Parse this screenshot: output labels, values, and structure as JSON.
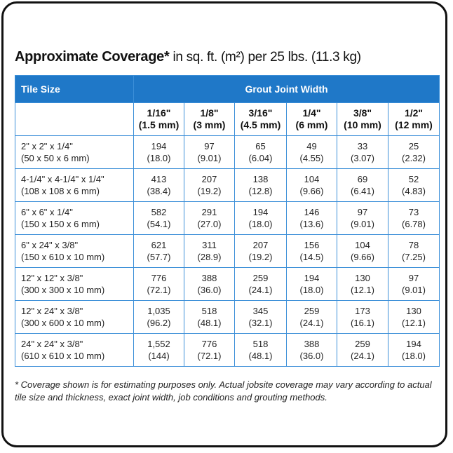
{
  "title": {
    "bold": "Approximate Coverage*",
    "rest": "in sq. ft. (m²) per 25 lbs. (11.3 kg)"
  },
  "table": {
    "header": {
      "tile_size": "Tile Size",
      "grout": "Grout Joint Width"
    },
    "columns": [
      [
        "1/16\"",
        "(1.5 mm)"
      ],
      [
        "1/8\"",
        "(3 mm)"
      ],
      [
        "3/16\"",
        "(4.5 mm)"
      ],
      [
        "1/4\"",
        "(6 mm)"
      ],
      [
        "3/8\"",
        "(10 mm)"
      ],
      [
        "1/2\"",
        "(12 mm)"
      ]
    ],
    "rows": [
      {
        "size": [
          "2\" x 2\" x 1/4\"",
          "(50 x 50 x 6 mm)"
        ],
        "cells": [
          [
            "194",
            "(18.0)"
          ],
          [
            "97",
            "(9.01)"
          ],
          [
            "65",
            "(6.04)"
          ],
          [
            "49",
            "(4.55)"
          ],
          [
            "33",
            "(3.07)"
          ],
          [
            "25",
            "(2.32)"
          ]
        ]
      },
      {
        "size": [
          "4-1/4\" x 4-1/4\" x 1/4\"",
          "(108 x 108 x 6 mm)"
        ],
        "cells": [
          [
            "413",
            "(38.4)"
          ],
          [
            "207",
            "(19.2)"
          ],
          [
            "138",
            "(12.8)"
          ],
          [
            "104",
            "(9.66)"
          ],
          [
            "69",
            "(6.41)"
          ],
          [
            "52",
            "(4.83)"
          ]
        ]
      },
      {
        "size": [
          "6\" x 6\" x 1/4\"",
          "(150 x 150 x 6 mm)"
        ],
        "cells": [
          [
            "582",
            "(54.1)"
          ],
          [
            "291",
            "(27.0)"
          ],
          [
            "194",
            "(18.0)"
          ],
          [
            "146",
            "(13.6)"
          ],
          [
            "97",
            "(9.01)"
          ],
          [
            "73",
            "(6.78)"
          ]
        ]
      },
      {
        "size": [
          "6\" x 24\" x 3/8\"",
          "(150 x 610 x 10 mm)"
        ],
        "cells": [
          [
            "621",
            "(57.7)"
          ],
          [
            "311",
            "(28.9)"
          ],
          [
            "207",
            "(19.2)"
          ],
          [
            "156",
            "(14.5)"
          ],
          [
            "104",
            "(9.66)"
          ],
          [
            "78",
            "(7.25)"
          ]
        ]
      },
      {
        "size": [
          "12\" x 12\" x 3/8\"",
          "(300 x 300 x 10 mm)"
        ],
        "cells": [
          [
            "776",
            "(72.1)"
          ],
          [
            "388",
            "(36.0)"
          ],
          [
            "259",
            "(24.1)"
          ],
          [
            "194",
            "(18.0)"
          ],
          [
            "130",
            "(12.1)"
          ],
          [
            "97",
            "(9.01)"
          ]
        ]
      },
      {
        "size": [
          "12\" x 24\" x 3/8\"",
          "(300 x 600 x 10 mm)"
        ],
        "cells": [
          [
            "1,035",
            "(96.2)"
          ],
          [
            "518",
            "(48.1)"
          ],
          [
            "345",
            "(32.1)"
          ],
          [
            "259",
            "(24.1)"
          ],
          [
            "173",
            "(16.1)"
          ],
          [
            "130",
            "(12.1)"
          ]
        ]
      },
      {
        "size": [
          "24\" x 24\" x 3/8\"",
          "(610 x 610 x 10 mm)"
        ],
        "cells": [
          [
            "1,552",
            "(144)"
          ],
          [
            "776",
            "(72.1)"
          ],
          [
            "518",
            "(48.1)"
          ],
          [
            "388",
            "(36.0)"
          ],
          [
            "259",
            "(24.1)"
          ],
          [
            "194",
            "(18.0)"
          ]
        ]
      }
    ]
  },
  "footnote": "* Coverage shown is for estimating purposes only. Actual jobsite coverage may vary according to actual tile size and thickness, exact joint width, job conditions and grouting methods."
}
